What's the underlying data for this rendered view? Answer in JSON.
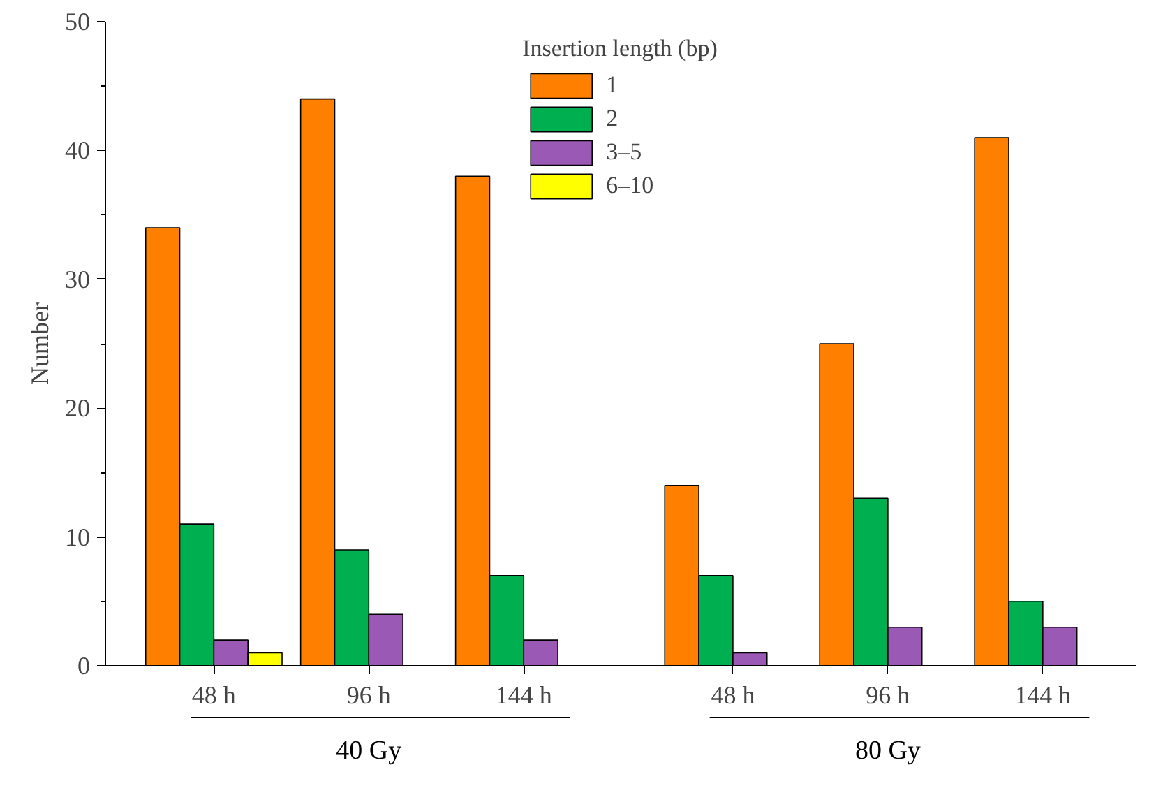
{
  "chart_data": {
    "type": "bar",
    "ylabel": "Number",
    "legend_title": "Insertion length (bp)",
    "categories": [
      "48 h",
      "96 h",
      "144 h",
      "48 h",
      "96 h",
      "144 h"
    ],
    "series": [
      {
        "name": "1",
        "color": "#ff8000",
        "values": [
          34,
          44,
          38,
          14,
          25,
          41
        ]
      },
      {
        "name": "2",
        "color": "#00b050",
        "values": [
          11,
          9,
          7,
          7,
          13,
          5
        ]
      },
      {
        "name": "3–5",
        "color": "#9b59b6",
        "values": [
          2,
          4,
          2,
          1,
          3,
          3
        ]
      },
      {
        "name": "6–10",
        "color": "#ffff00",
        "values": [
          1,
          null,
          null,
          null,
          null,
          null
        ]
      }
    ],
    "annotations": [
      "40 Gy",
      "80 Gy"
    ],
    "ylim": [
      0,
      50
    ],
    "yticks": [
      0,
      10,
      20,
      30,
      40,
      50
    ],
    "legend": "top",
    "grid": false
  }
}
